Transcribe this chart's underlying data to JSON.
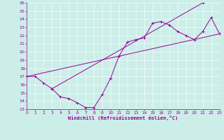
{
  "xlabel": "Windchill (Refroidissement éolien,°C)",
  "xlim": [
    0,
    23
  ],
  "ylim": [
    13,
    26
  ],
  "xticks": [
    0,
    1,
    2,
    3,
    4,
    5,
    6,
    7,
    8,
    9,
    10,
    11,
    12,
    13,
    14,
    15,
    16,
    17,
    18,
    19,
    20,
    21,
    22,
    23
  ],
  "yticks": [
    13,
    14,
    15,
    16,
    17,
    18,
    19,
    20,
    21,
    22,
    23,
    24,
    25,
    26
  ],
  "bg_color": "#cceee8",
  "line_color": "#990099",
  "curve1_x": [
    0,
    1,
    2,
    3,
    4,
    5,
    6,
    7,
    8,
    9,
    10,
    11,
    12,
    13,
    14,
    15,
    16,
    17,
    18,
    19,
    20,
    21,
    22,
    23
  ],
  "curve1_y": [
    17,
    17,
    16.2,
    15.5,
    14.5,
    14.3,
    13.8,
    13.2,
    13.2,
    14.8,
    16.8,
    19.5,
    21.2,
    21.5,
    21.7,
    23.5,
    23.7,
    23.3,
    22.5,
    22.0,
    21.5,
    22.5,
    24.2,
    22.2
  ],
  "curve2_x": [
    0,
    23
  ],
  "curve2_y": [
    17,
    22.2
  ],
  "curve3_x": [
    3,
    21
  ],
  "curve3_y": [
    15.5,
    26.0
  ],
  "marker_symbol": "+",
  "marker_size": 3,
  "linewidth": 0.7,
  "tick_fontsize": 4.5,
  "xlabel_fontsize": 5,
  "xlabel_fontweight": "bold"
}
